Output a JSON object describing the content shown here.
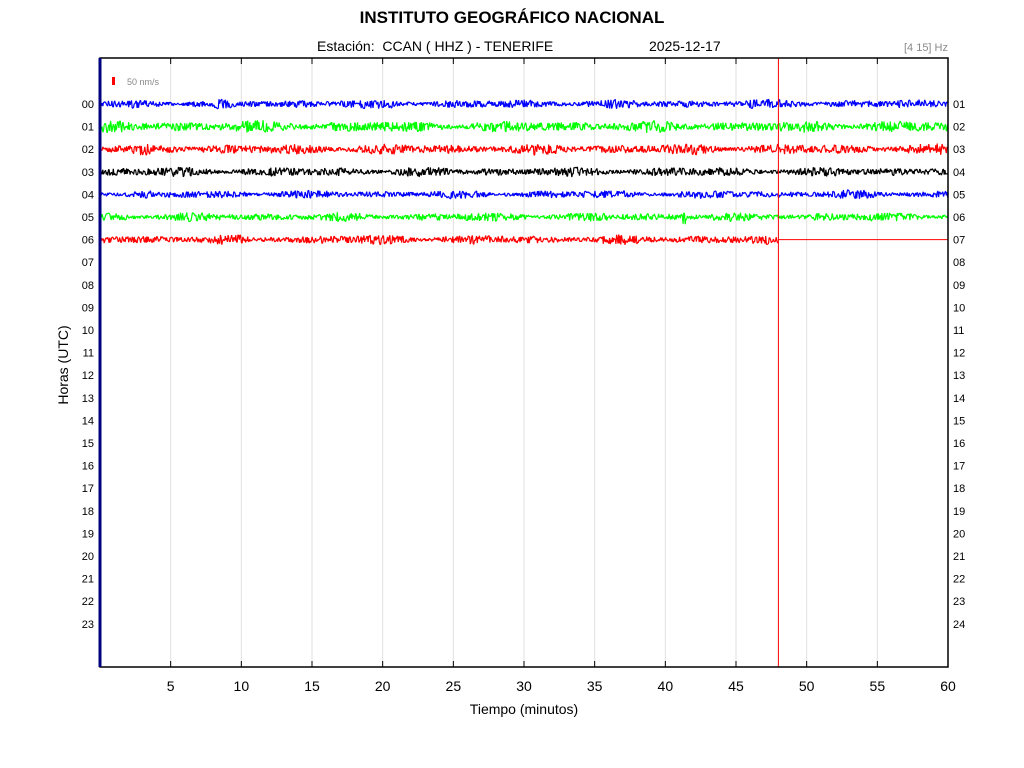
{
  "header": {
    "institute": "INSTITUTO GEOGRÁFICO NACIONAL",
    "station_label": "Estación:  CCAN ( HHZ ) - TENERIFE",
    "date": "2025-12-17",
    "filter_band": "[4 15] Hz"
  },
  "chart_data": {
    "type": "line",
    "title": "INSTITUTO GEOGRÁFICO NACIONAL",
    "subtitle": "Estación:  CCAN ( HHZ ) - TENERIFE",
    "xlabel": "Tiempo (minutos)",
    "ylabel": "Horas (UTC)",
    "xlim": [
      0,
      60
    ],
    "x_ticks": [
      "5",
      "10",
      "15",
      "20",
      "25",
      "30",
      "35",
      "40",
      "45",
      "50",
      "55",
      "60"
    ],
    "left_hour_labels": [
      "00",
      "01",
      "02",
      "03",
      "04",
      "05",
      "06",
      "07",
      "08",
      "09",
      "10",
      "11",
      "12",
      "13",
      "14",
      "15",
      "16",
      "17",
      "18",
      "19",
      "20",
      "21",
      "22",
      "23"
    ],
    "right_hour_labels": [
      "01",
      "02",
      "03",
      "04",
      "05",
      "06",
      "07",
      "08",
      "09",
      "10",
      "11",
      "12",
      "13",
      "14",
      "15",
      "16",
      "17",
      "18",
      "19",
      "20",
      "21",
      "22",
      "23",
      "24"
    ],
    "scale_label": "50 nm/s",
    "current_time_minute": 48,
    "grid": "vertical",
    "series": [
      {
        "hour": 0,
        "color": "#0000ff",
        "x_end": 60,
        "noise_amplitude": 0.35
      },
      {
        "hour": 1,
        "color": "#00ff00",
        "x_end": 60,
        "noise_amplitude": 0.6
      },
      {
        "hour": 2,
        "color": "#ff0000",
        "x_end": 60,
        "noise_amplitude": 0.5
      },
      {
        "hour": 3,
        "color": "#000000",
        "x_end": 60,
        "noise_amplitude": 0.4
      },
      {
        "hour": 4,
        "color": "#0000ff",
        "x_end": 60,
        "noise_amplitude": 0.3
      },
      {
        "hour": 5,
        "color": "#00ff00",
        "x_end": 60,
        "noise_amplitude": 0.35,
        "event_minute": 41.3
      },
      {
        "hour": 6,
        "color": "#ff0000",
        "x_end": 48,
        "noise_amplitude": 0.4
      }
    ],
    "colors": {
      "axes_border": "#000080",
      "marker": "#ff0000",
      "grid": "#e0e0e0"
    }
  }
}
